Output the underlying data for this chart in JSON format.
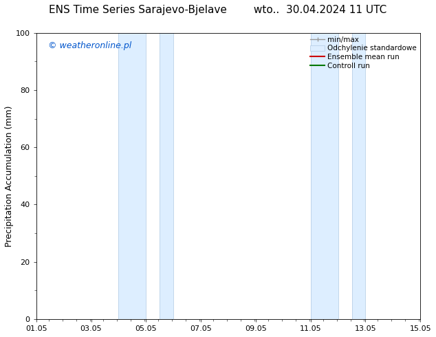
{
  "title_left": "ENS Time Series Sarajevo-Bjelave",
  "title_right": "wto..  30.04.2024 11 UTC",
  "ylabel": "Precipitation Accumulation (mm)",
  "watermark": "© weatheronline.pl",
  "watermark_color": "#0055cc",
  "ylim": [
    0,
    100
  ],
  "yticks": [
    0,
    20,
    40,
    60,
    80,
    100
  ],
  "background_color": "#ffffff",
  "plot_bg_color": "#ffffff",
  "x_start": 1.05,
  "x_end": 15.05,
  "xtick_labels": [
    "01.05",
    "03.05",
    "05.05",
    "07.05",
    "09.05",
    "11.05",
    "13.05",
    "15.05"
  ],
  "xtick_positions": [
    1.05,
    3.05,
    5.05,
    7.05,
    9.05,
    11.05,
    13.05,
    15.05
  ],
  "shade_regions": [
    {
      "x_start": 4.05,
      "x_end": 5.05
    },
    {
      "x_start": 5.55,
      "x_end": 6.05
    },
    {
      "x_start": 11.05,
      "x_end": 12.05
    },
    {
      "x_start": 12.55,
      "x_end": 13.05
    }
  ],
  "shade_color": "#ddeeff",
  "shade_edge_color": "#b8d0e8",
  "minmax_color": "#999999",
  "ensemble_color": "#cc0000",
  "control_color": "#007700",
  "title_fontsize": 11,
  "axis_label_fontsize": 9,
  "tick_fontsize": 8,
  "legend_fontsize": 7.5,
  "watermark_fontsize": 9
}
